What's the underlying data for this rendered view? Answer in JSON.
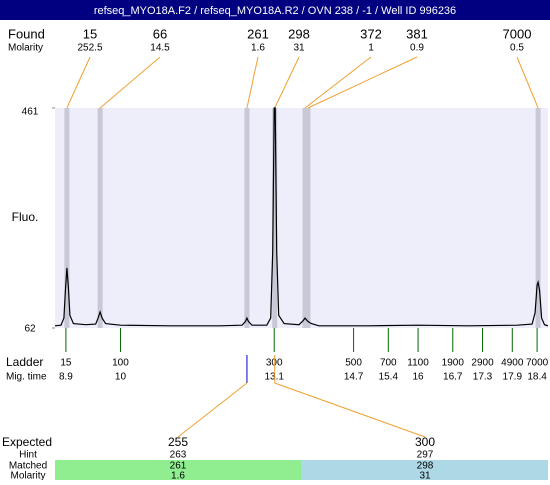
{
  "chart_data": {
    "type": "electropherogram",
    "title": "refseq_MYO18A.F2 / refseq_MYO18A.R2 / OVN 238 / -1 / Well ID 996236",
    "found_label": "Found",
    "molarity_label": "Molarity",
    "y_label": "Fluo.",
    "ladder_label": "Ladder",
    "mig_time_label": "Mig. time",
    "ylim": [
      62,
      461
    ],
    "yticks": [
      461,
      62
    ],
    "xlim": [
      8.68,
      18.62
    ],
    "peaks": [
      {
        "size": 15,
        "molarity": 252.5,
        "mig_time": 8.92
      },
      {
        "size": 66,
        "molarity": 14.5,
        "mig_time": 9.59
      },
      {
        "size": 261,
        "molarity": 1.6,
        "mig_time": 12.55
      },
      {
        "size": 298,
        "molarity": 31,
        "mig_time": 13.11
      },
      {
        "size": 372,
        "molarity": 1,
        "mig_time": 13.72
      },
      {
        "size": 381,
        "molarity": 0.9,
        "mig_time": 13.78
      },
      {
        "size": 7000,
        "molarity": 0.5,
        "mig_time": 18.42
      }
    ],
    "ladder": {
      "sizes": [
        15,
        100,
        300,
        500,
        700,
        1100,
        1900,
        2900,
        4900,
        7000
      ],
      "mig_times": [
        8.9,
        10,
        13.1,
        14.7,
        15.4,
        16,
        16.7,
        17.3,
        17.9,
        18.4
      ]
    },
    "trace": {
      "color": "#000000",
      "x": [
        8.68,
        8.8,
        8.86,
        8.89,
        8.92,
        8.95,
        8.98,
        9.05,
        9.3,
        9.5,
        9.55,
        9.59,
        9.63,
        9.7,
        10,
        11,
        12,
        12.45,
        12.52,
        12.55,
        12.58,
        12.65,
        12.95,
        13.03,
        13.07,
        13.1,
        13.12,
        13.15,
        13.19,
        13.3,
        13.6,
        13.68,
        13.72,
        13.78,
        13.85,
        14,
        15,
        16,
        17,
        18,
        18.3,
        18.36,
        18.4,
        18.42,
        18.45,
        18.49,
        18.55,
        18.62
      ],
      "y": [
        66,
        67,
        80,
        130,
        171,
        135,
        85,
        70,
        68,
        69,
        80,
        91,
        80,
        70,
        67,
        66,
        66,
        67,
        74,
        80,
        74,
        67,
        67,
        80,
        200,
        461,
        461,
        200,
        85,
        70,
        68,
        75,
        80,
        74,
        70,
        66,
        66,
        67,
        66,
        67,
        69,
        90,
        140,
        145,
        130,
        80,
        68,
        66
      ]
    },
    "expected_label": "Expected",
    "hint_label": "Hint",
    "matched_label": "Matched",
    "matched_molarity_label": "Molarity",
    "expected": [
      {
        "expected": 255,
        "hint": 263,
        "matched": 261,
        "molarity": 1.6,
        "mig_time": 12.55,
        "color": "#90ee90"
      },
      {
        "expected": 300,
        "hint": 297,
        "matched": 298,
        "molarity": 31,
        "mig_time": 13.11,
        "color": "#add8e6"
      }
    ]
  }
}
